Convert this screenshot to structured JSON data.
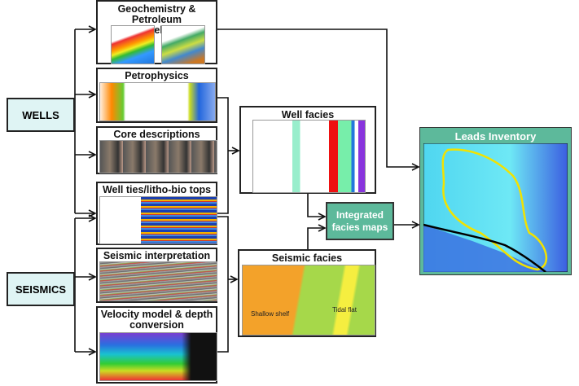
{
  "sources": {
    "wells": "WELLS",
    "seismics": "SEISMICS"
  },
  "modules": {
    "geochem": "Geochemistry & Petroleum modelling",
    "petrophysics": "Petrophysics",
    "core": "Core descriptions",
    "well_ties": "Well ties/litho-bio tops",
    "seismic_interp": "Seismic interpretation",
    "velocity": "Velocity model & depth conversion"
  },
  "well_facies": {
    "title": "Well facies"
  },
  "seismic_facies": {
    "title": "Seismic facies",
    "labels": [
      "Shallow shelf",
      "Tidal flat"
    ]
  },
  "integrated": "Integrated facies maps",
  "leads": "Leads Inventory",
  "colors": {
    "source_fill": "#dff4f4",
    "teal": "#5db99b",
    "map_blue": "#4fd6f0",
    "yellow_outline": "#f2e200"
  }
}
